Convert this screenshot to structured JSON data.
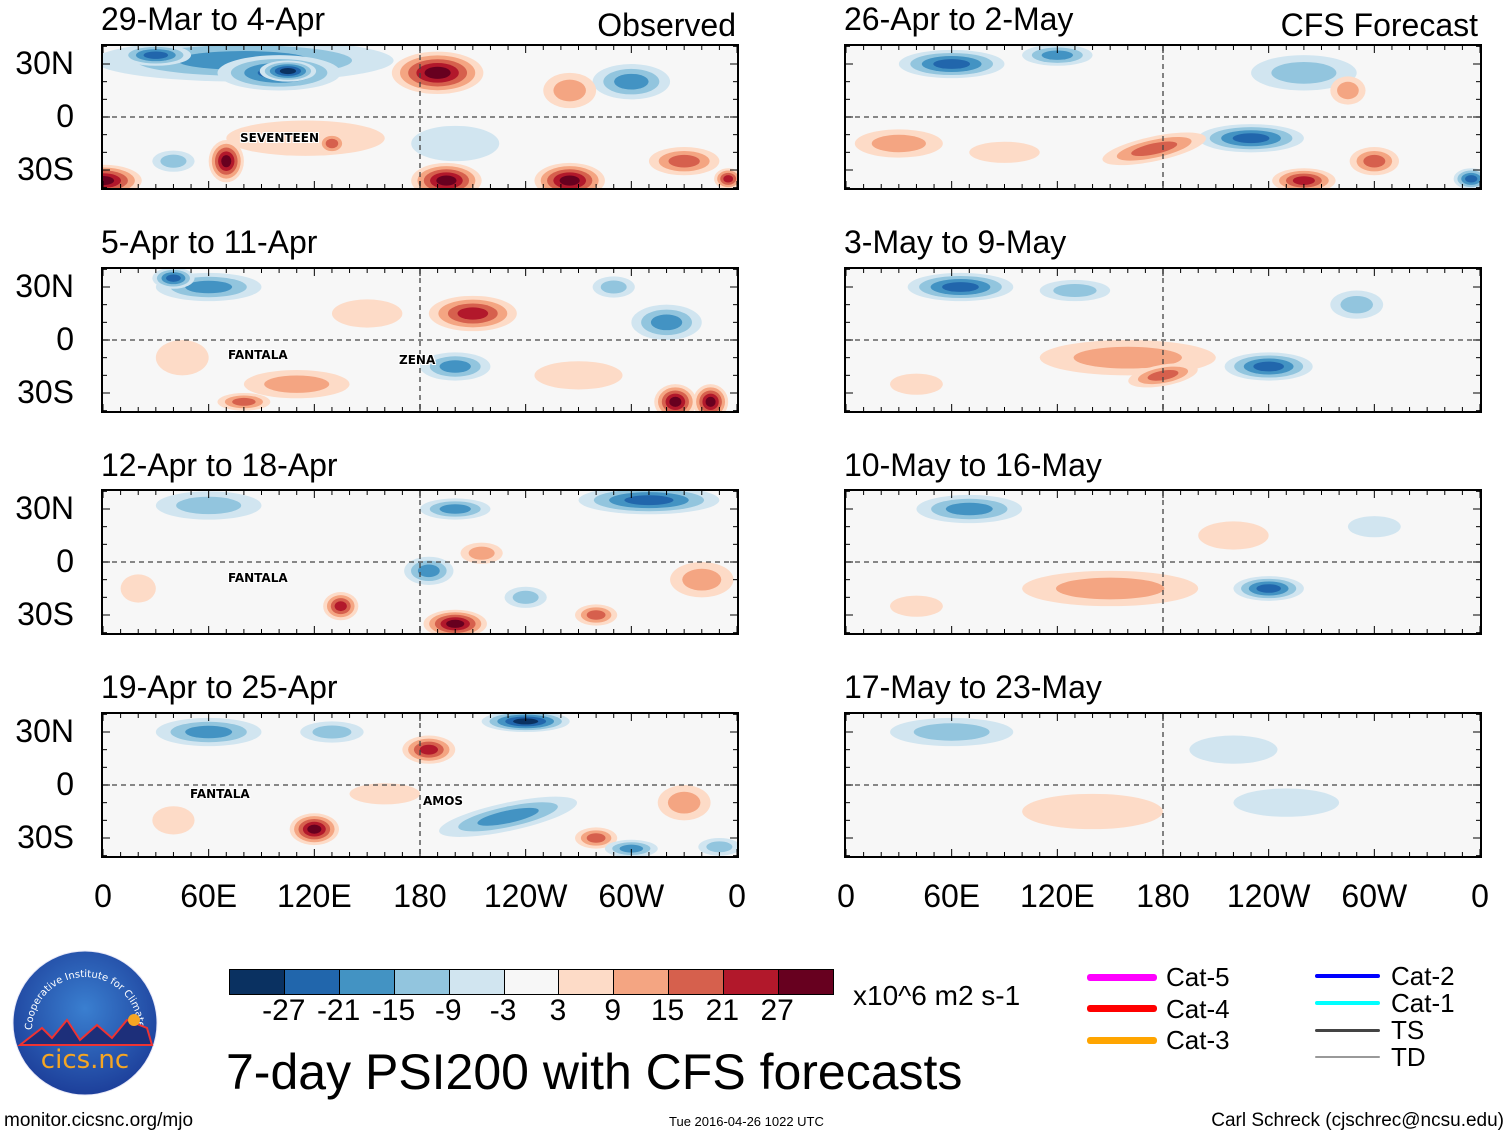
{
  "headers": {
    "observed": "Observed",
    "forecast": "CFS Forecast"
  },
  "observed_panels": [
    {
      "title": "29-Mar to 4-Apr",
      "storms": [
        "SEVENTEEN"
      ]
    },
    {
      "title": "5-Apr to 11-Apr",
      "storms": [
        "FANTALA",
        "ZENA"
      ]
    },
    {
      "title": "12-Apr to 18-Apr",
      "storms": [
        "FANTALA"
      ]
    },
    {
      "title": "19-Apr to 25-Apr",
      "storms": [
        "FANTALA",
        "AMOS"
      ]
    }
  ],
  "forecast_panels": [
    {
      "title": "26-Apr to 2-May"
    },
    {
      "title": "3-May to 9-May"
    },
    {
      "title": "10-May to 16-May"
    },
    {
      "title": "17-May to 23-May"
    }
  ],
  "lat_labels": [
    "30N",
    "0",
    "30S"
  ],
  "lon_labels": [
    "0",
    "60E",
    "120E",
    "180",
    "120W",
    "60W",
    "0"
  ],
  "colorbar": {
    "colors": [
      "#0a3161",
      "#2166ac",
      "#4393c3",
      "#92c5de",
      "#d1e5f0",
      "#f7f7f7",
      "#fddbc7",
      "#f4a582",
      "#d6604d",
      "#b2182b",
      "#67001f"
    ],
    "labels": [
      "-27",
      "-21",
      "-15",
      "-9",
      "-3",
      "3",
      "9",
      "15",
      "21",
      "27"
    ],
    "units": "x10^6 m2 s-1"
  },
  "title": "7-day PSI200 with CFS forecasts",
  "track_legend": [
    {
      "label": "Cat-5",
      "color": "#ff00ff"
    },
    {
      "label": "Cat-4",
      "color": "#ff0000"
    },
    {
      "label": "Cat-3",
      "color": "#ffa500"
    },
    {
      "label": "Cat-2",
      "color": "#0000ff"
    },
    {
      "label": "Cat-1",
      "color": "#00ffff"
    },
    {
      "label": "TS",
      "color": "#444444"
    },
    {
      "label": "TD",
      "color": "#999999"
    }
  ],
  "logo": {
    "ring_text": "Cooperative Institute for Climate and Satellites",
    "name": "cics.nc"
  },
  "footer": {
    "url": "monitor.cicsnc.org/mjo",
    "timestamp": "Tue 2016-04-26 1022 UTC",
    "author": "Carl Schreck (cjschrec@ncsu.edu)"
  }
}
